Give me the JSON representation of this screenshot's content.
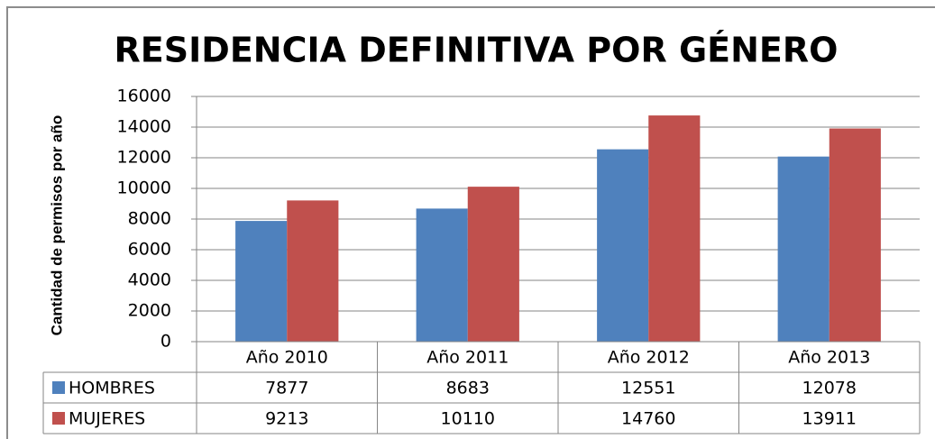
{
  "chart_data": {
    "type": "bar",
    "title": "RESIDENCIA DEFINITIVA POR GÉNERO",
    "y_label": "Cantidad de permisos por año",
    "categories": [
      "Año 2010",
      "Año 2011",
      "Año 2012",
      "Año 2013"
    ],
    "series": [
      {
        "name": "HOMBRES",
        "color": "#4f81bd",
        "values": [
          7877,
          8683,
          12551,
          12078
        ]
      },
      {
        "name": "MUJERES",
        "color": "#c0504d",
        "values": [
          9213,
          10110,
          14760,
          13911
        ]
      }
    ],
    "ylim": [
      0,
      16000
    ],
    "yticks": [
      0,
      2000,
      4000,
      6000,
      8000,
      10000,
      12000,
      14000,
      16000
    ],
    "grid": true,
    "data_table": true
  }
}
